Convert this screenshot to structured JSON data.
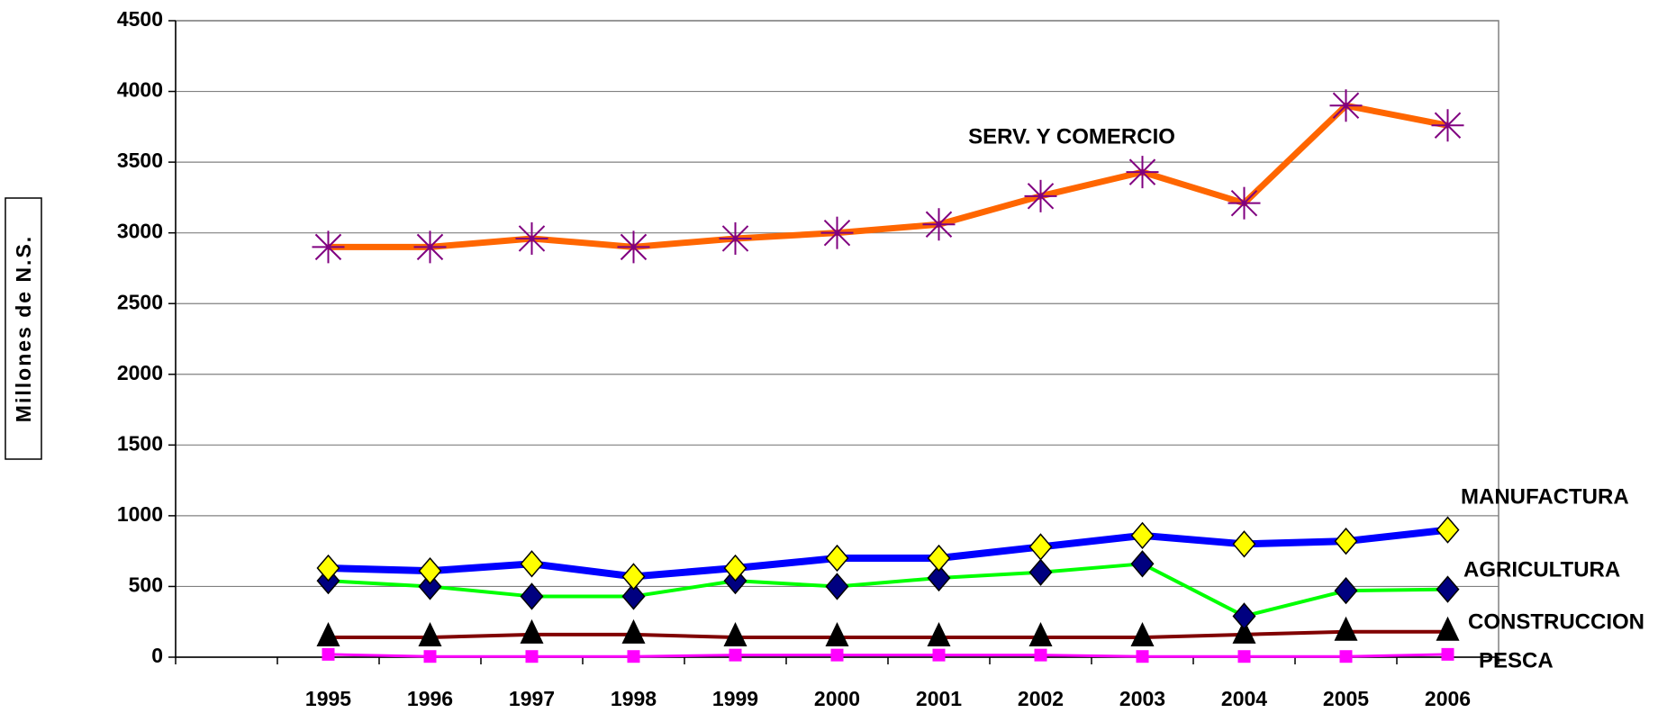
{
  "chart_data": {
    "type": "line",
    "y_label": "Millones de N.S.",
    "categories": [
      null,
      "1995",
      "1996",
      "1997",
      "1998",
      "1999",
      "2000",
      "2001",
      "2002",
      "2003",
      "2004",
      "2005",
      "2006"
    ],
    "series": [
      {
        "name": "SERV. Y COMERCIO",
        "color": "#ff6600",
        "marker": "asterisk",
        "marker_color": "#800080",
        "values": [
          null,
          2900,
          2900,
          2960,
          2900,
          2960,
          3000,
          3060,
          3260,
          3430,
          3210,
          3900,
          3760
        ]
      },
      {
        "name": "MANUFACTURA",
        "color": "#0000ff",
        "marker": "diamond",
        "marker_color": "#ffff00",
        "values": [
          null,
          630,
          610,
          660,
          570,
          630,
          700,
          700,
          780,
          860,
          800,
          820,
          900
        ]
      },
      {
        "name": "AGRICULTURA",
        "color": "#00ff00",
        "marker": "diamond",
        "marker_color": "#000080",
        "values": [
          null,
          540,
          500,
          430,
          430,
          540,
          500,
          560,
          600,
          660,
          290,
          470,
          480
        ]
      },
      {
        "name": "CONSTRUCCION",
        "color": "#800000",
        "marker": "triangle",
        "marker_color": "#000000",
        "values": [
          null,
          140,
          140,
          160,
          160,
          140,
          140,
          140,
          140,
          140,
          160,
          180,
          180
        ]
      },
      {
        "name": "PESCA",
        "color": "#ff00ff",
        "marker": "square",
        "marker_color": "#ff00ff",
        "values": [
          null,
          20,
          5,
          5,
          5,
          15,
          15,
          15,
          15,
          5,
          5,
          5,
          20
        ]
      }
    ],
    "ylim": [
      0,
      4500
    ],
    "yticks": [
      0,
      500,
      1000,
      1500,
      2000,
      2500,
      3000,
      3500,
      4000,
      4500
    ],
    "grid": true
  }
}
